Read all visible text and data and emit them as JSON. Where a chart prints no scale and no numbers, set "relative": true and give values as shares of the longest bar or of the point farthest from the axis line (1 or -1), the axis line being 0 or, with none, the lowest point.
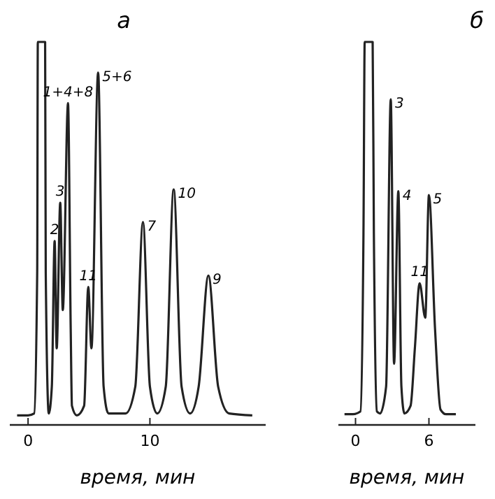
{
  "chart_data": [
    {
      "type": "line",
      "title": "а",
      "xlabel": "время, мин",
      "relative": true,
      "xlim": [
        -1.5,
        19.5
      ],
      "xticks": [
        0,
        10
      ],
      "series": [
        {
          "color": "#222222",
          "x": [
            -0.9,
            0.0,
            0.5,
            0.75,
            0.8,
            1.4,
            1.45,
            1.7,
            1.95,
            2.18,
            2.35,
            2.64,
            2.85,
            3.28,
            3.5,
            3.6,
            4.0,
            4.6,
            4.94,
            5.2,
            5.75,
            6.2,
            6.6,
            8.0,
            8.8,
            9.43,
            10.0,
            10.6,
            11.3,
            11.95,
            12.6,
            13.3,
            14.0,
            14.8,
            15.6,
            16.5,
            18.4
          ],
          "values": [
            0.025,
            0.025,
            0.03,
            0.4,
            1,
            1,
            0.4,
            0.03,
            0.1,
            0.48,
            0.2,
            0.58,
            0.3,
            0.84,
            0.25,
            0.05,
            0.025,
            0.05,
            0.36,
            0.2,
            0.92,
            0.1,
            0.03,
            0.03,
            0.1,
            0.53,
            0.1,
            0.03,
            0.1,
            0.615,
            0.1,
            0.03,
            0.1,
            0.39,
            0.1,
            0.03,
            0.025
          ]
        }
      ],
      "annotations": [
        {
          "text": "2",
          "x": 2.18,
          "y": 0.48
        },
        {
          "text": "3",
          "x": 2.64,
          "y": 0.58
        },
        {
          "text": "1+4+8",
          "x": 3.28,
          "y": 0.84
        },
        {
          "text": "11",
          "x": 4.94,
          "y": 0.36
        },
        {
          "text": "5+6",
          "x": 5.75,
          "y": 0.92
        },
        {
          "text": "7",
          "x": 9.43,
          "y": 0.53
        },
        {
          "text": "10",
          "x": 11.95,
          "y": 0.615
        },
        {
          "text": "9",
          "x": 14.8,
          "y": 0.39
        }
      ]
    },
    {
      "type": "line",
      "title": "б",
      "xlabel": "время, мин",
      "relative": true,
      "xlim": [
        -1.4,
        9.8
      ],
      "xticks": [
        0,
        6
      ],
      "series": [
        {
          "color": "#222222",
          "x": [
            -0.9,
            -0.2,
            0.4,
            0.65,
            0.75,
            1.4,
            1.5,
            1.75,
            2.0,
            2.5,
            2.88,
            3.15,
            3.5,
            3.75,
            4.0,
            4.5,
            4.85,
            5.24,
            5.7,
            6.0,
            6.5,
            6.95,
            7.4,
            8.2
          ],
          "values": [
            0.028,
            0.028,
            0.035,
            0.5,
            1,
            1,
            0.5,
            0.035,
            0.03,
            0.1,
            0.85,
            0.16,
            0.61,
            0.1,
            0.03,
            0.05,
            0.2,
            0.37,
            0.28,
            0.6,
            0.25,
            0.04,
            0.028,
            0.028
          ]
        }
      ],
      "annotations": [
        {
          "text": "3",
          "x": 2.88,
          "y": 0.85
        },
        {
          "text": "4",
          "x": 3.5,
          "y": 0.61
        },
        {
          "text": "11",
          "x": 5.24,
          "y": 0.37
        },
        {
          "text": "5",
          "x": 6.0,
          "y": 0.6
        }
      ]
    }
  ]
}
